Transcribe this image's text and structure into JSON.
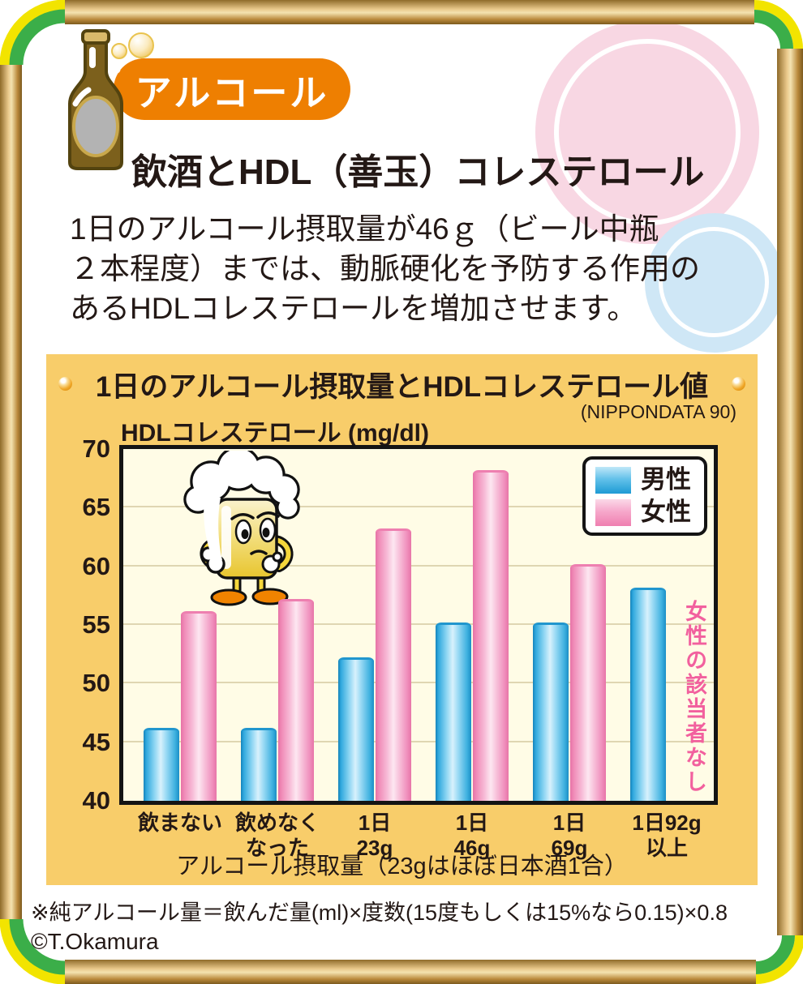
{
  "page": {
    "badge_label": "アルコール",
    "title": "飲酒とHDL（善玉）コレステロール",
    "intro_text": "1日のアルコール摂取量が46ｇ（ビール中瓶\n２本程度）までは、動脈硬化を予防する作用の\nあるHDLコレステロールを増加させます。",
    "footnote": "※純アルコール量＝飲んだ量(ml)×度数(15度もしくは15%なら0.15)×0.8",
    "copyright": "©T.Okamura"
  },
  "panel": {
    "title": "1日のアルコール摂取量とHDLコレステロール値",
    "source": "(NIPPONDATA 90)"
  },
  "chart_data": {
    "type": "bar",
    "title": "1日のアルコール摂取量とHDLコレステロール値",
    "source": "(NIPPONDATA 90)",
    "ylabel": "HDLコレステロール (mg/dl)",
    "xlabel": "アルコール摂取量（23gはほぼ日本酒1合）",
    "ylim": [
      40,
      70
    ],
    "yticks": [
      40,
      45,
      50,
      55,
      60,
      65,
      70
    ],
    "grid": true,
    "legend_position": "top-right",
    "categories": [
      "飲まない",
      "飲めなく\nなった",
      "1日\n23g",
      "1日\n46g",
      "1日\n69g",
      "1日92g\n以上"
    ],
    "series": [
      {
        "name": "男性",
        "color": "#29A8DC",
        "values": [
          46,
          46,
          52,
          55,
          55,
          58
        ]
      },
      {
        "name": "女性",
        "color": "#F290BB",
        "values": [
          56,
          57,
          63,
          68,
          60,
          null
        ]
      }
    ],
    "annotation": "女性の該当者なし"
  },
  "colors": {
    "badge": "#EE7F01",
    "panel_bg": "#F8CD6A",
    "plot_bg": "#FFFCE6",
    "grid": "#DFD6B2",
    "male_dark": "#1B93CC",
    "female_dark": "#EC79AC",
    "note": "#F2609E",
    "text": "#231815",
    "frame_gold": "#C79A4B",
    "corner_green": "#3BAE49",
    "corner_yellow": "#F2E400",
    "circle_pink": "#F8D7E3",
    "circle_blue": "#CFE7F6"
  }
}
